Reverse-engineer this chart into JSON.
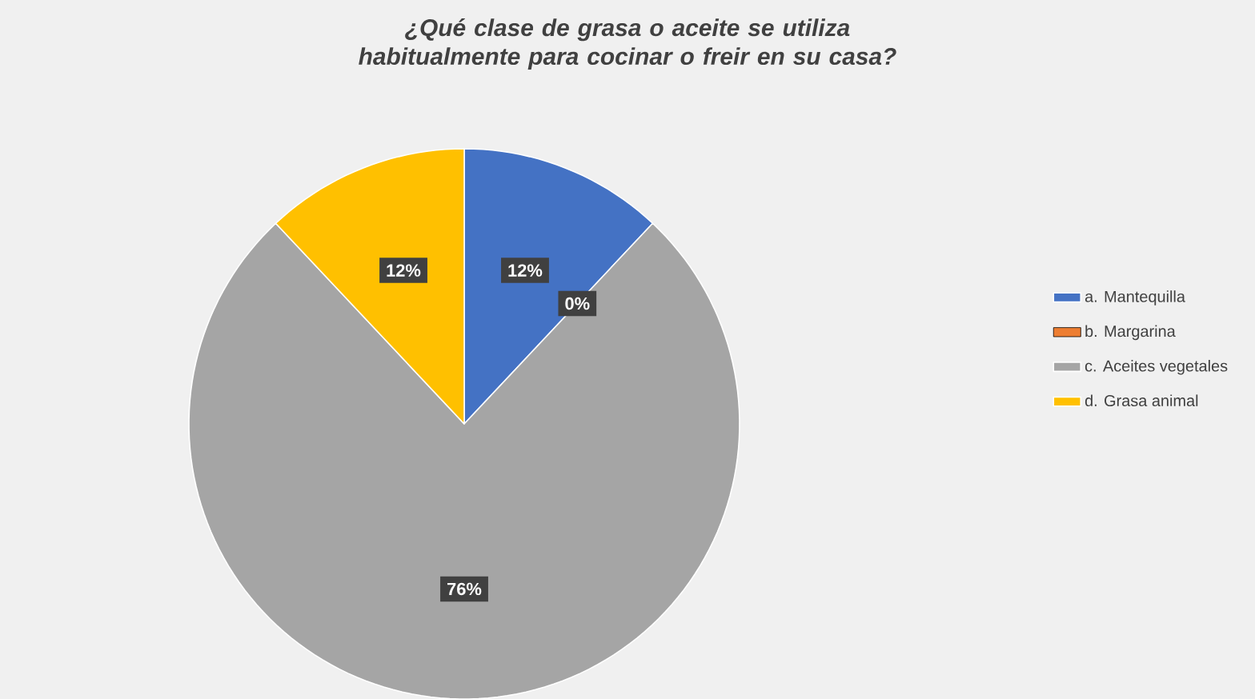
{
  "chart_data": {
    "type": "pie",
    "title": "¿Qué clase de grasa o aceite se utiliza habitualmente para cocinar o freir en su casa?",
    "categories": [
      "a. Mantequilla",
      "b. Margarina",
      "c. Aceites vegetales",
      "d. Grasa animal"
    ],
    "values": [
      12,
      0,
      76,
      12
    ],
    "colors": [
      "#4472c4",
      "#ed7d31",
      "#a5a5a5",
      "#ffc000"
    ],
    "value_labels": [
      "12%",
      "0%",
      "76%",
      "12%"
    ],
    "legend": "right"
  }
}
